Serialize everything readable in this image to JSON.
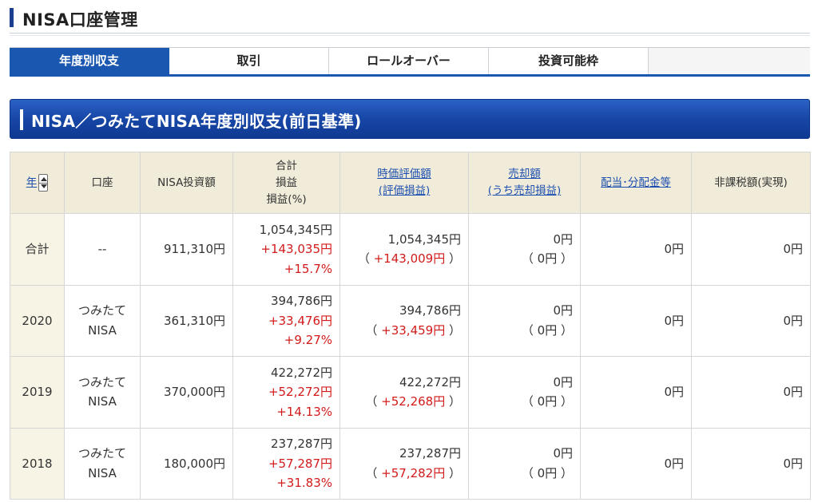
{
  "page": {
    "title": "NISA口座管理"
  },
  "tabs": [
    {
      "label": "年度別収支",
      "active": true
    },
    {
      "label": "取引",
      "active": false
    },
    {
      "label": "ロールオーバー",
      "active": false
    },
    {
      "label": "投資可能枠",
      "active": false
    }
  ],
  "section": {
    "title": "NISA／つみたてNISA年度別収支(前日基準)"
  },
  "table": {
    "headers": {
      "year": "年",
      "account": "口座",
      "investment": "NISA投資額",
      "total": [
        "合計",
        "損益",
        "損益(%)"
      ],
      "valuation": [
        "時価評価額",
        "(評価損益)"
      ],
      "sales": [
        "売却額",
        "(うち売却損益)"
      ],
      "dividend": "配当･分配金等",
      "tax_exempt": "非課税額(実現)"
    },
    "rows": [
      {
        "year": "合計",
        "account": [
          "--"
        ],
        "investment": "911,310円",
        "total": "1,054,345円",
        "profit": "+143,035円",
        "profit_pct": "+15.7%",
        "valuation": "1,054,345円",
        "valuation_profit": "+143,009円",
        "sales": "0円",
        "sales_profit": "0円",
        "dividend": "0円",
        "tax_exempt": "0円"
      },
      {
        "year": "2020",
        "account": [
          "つみたて",
          "NISA"
        ],
        "investment": "361,310円",
        "total": "394,786円",
        "profit": "+33,476円",
        "profit_pct": "+9.27%",
        "valuation": "394,786円",
        "valuation_profit": "+33,459円",
        "sales": "0円",
        "sales_profit": "0円",
        "dividend": "0円",
        "tax_exempt": "0円"
      },
      {
        "year": "2019",
        "account": [
          "つみたて",
          "NISA"
        ],
        "investment": "370,000円",
        "total": "422,272円",
        "profit": "+52,272円",
        "profit_pct": "+14.13%",
        "valuation": "422,272円",
        "valuation_profit": "+52,268円",
        "sales": "0円",
        "sales_profit": "0円",
        "dividend": "0円",
        "tax_exempt": "0円"
      },
      {
        "year": "2018",
        "account": [
          "つみたて",
          "NISA"
        ],
        "investment": "180,000円",
        "total": "237,287円",
        "profit": "+57,287円",
        "profit_pct": "+31.83%",
        "valuation": "237,287円",
        "valuation_profit": "+57,282円",
        "sales": "0円",
        "sales_profit": "0円",
        "dividend": "0円",
        "tax_exempt": "0円"
      }
    ]
  },
  "colors": {
    "accent": "#1a57b0",
    "header_bg": "#f0ecd9",
    "profit": "#d21a1a",
    "link": "#1d4fb0"
  },
  "icons": {
    "sort": "sort-updown-icon"
  }
}
